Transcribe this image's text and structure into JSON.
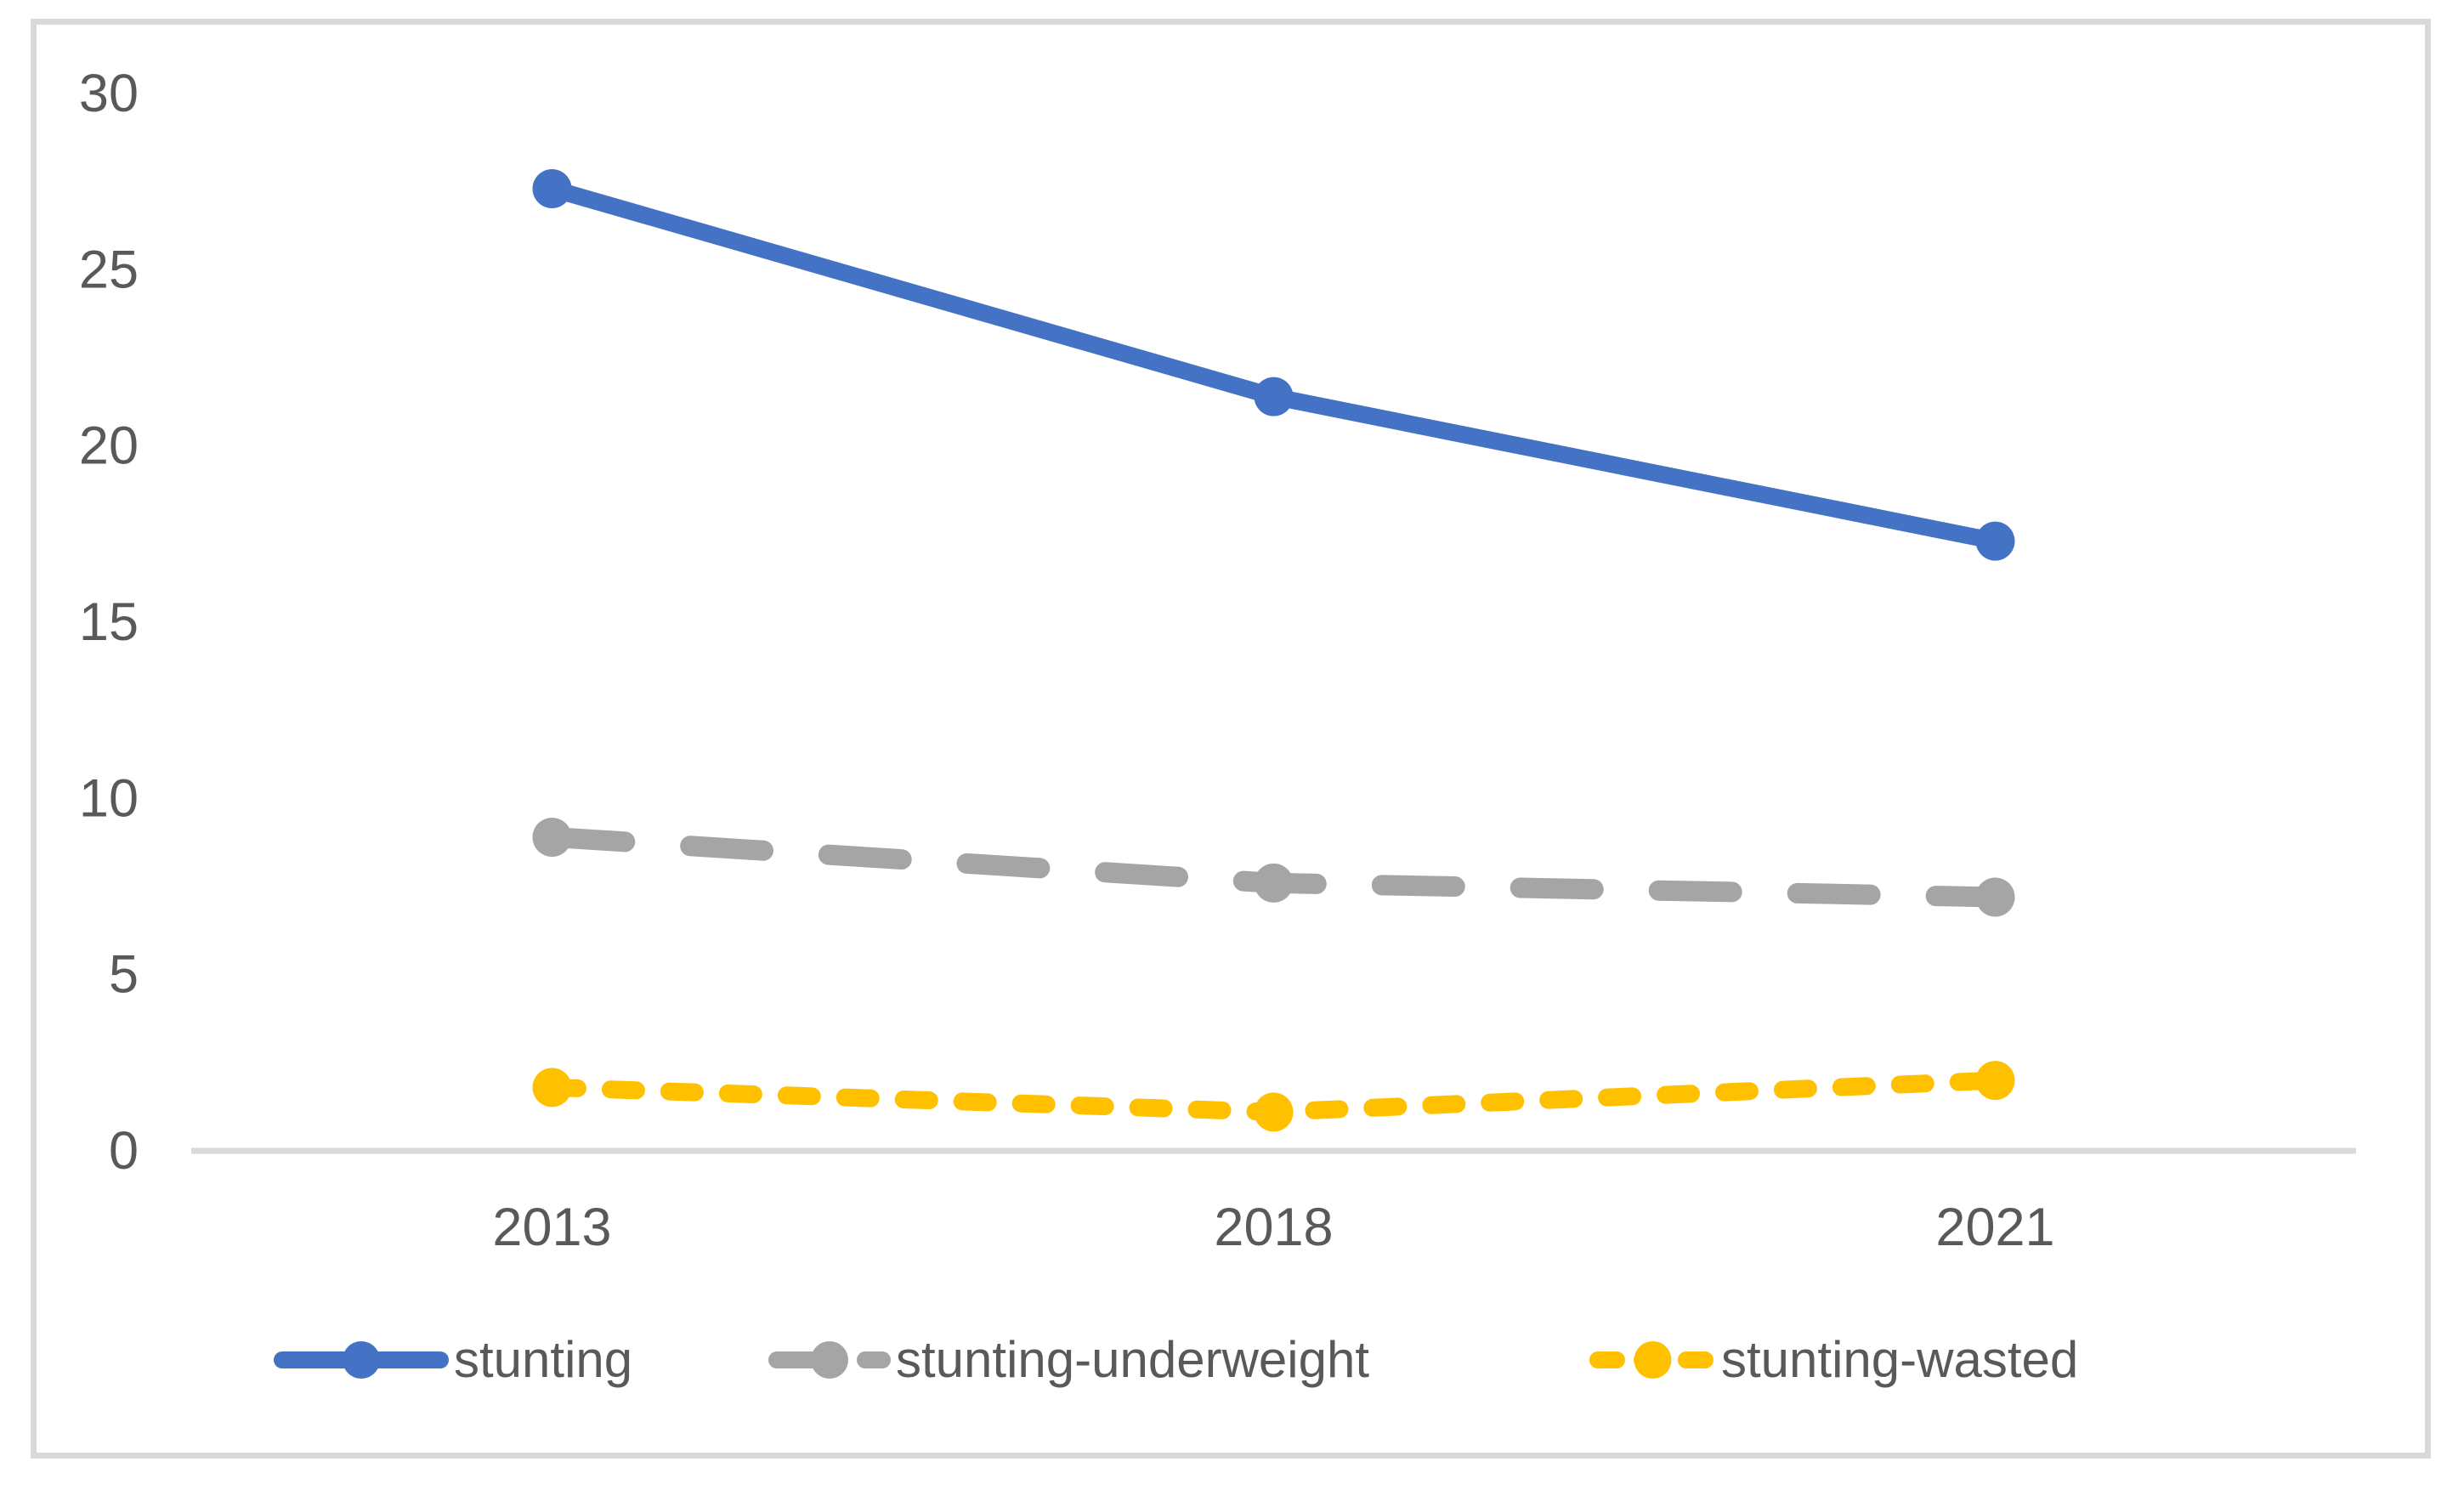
{
  "chart_data": {
    "type": "line",
    "categories": [
      "2013",
      "2018",
      "2021"
    ],
    "series": [
      {
        "name": "stunting",
        "color": "#4472C4",
        "dash": "solid",
        "values": [
          27.3,
          21.4,
          17.3
        ]
      },
      {
        "name": "stunting-underweight",
        "color": "#A5A5A5",
        "dash": "long-dash",
        "values": [
          8.9,
          7.6,
          7.2
        ]
      },
      {
        "name": "stunting-wasted",
        "color": "#FFC000",
        "dash": "short-dash",
        "values": [
          1.8,
          1.1,
          2.0
        ]
      }
    ],
    "ylim": [
      0,
      30
    ],
    "yticks": [
      0,
      5,
      10,
      15,
      20,
      25,
      30
    ],
    "grid": false,
    "legend_position": "bottom",
    "axis_color": "#D9D9D9",
    "frame_color": "#D9D9D9",
    "text_color": "#595959"
  }
}
